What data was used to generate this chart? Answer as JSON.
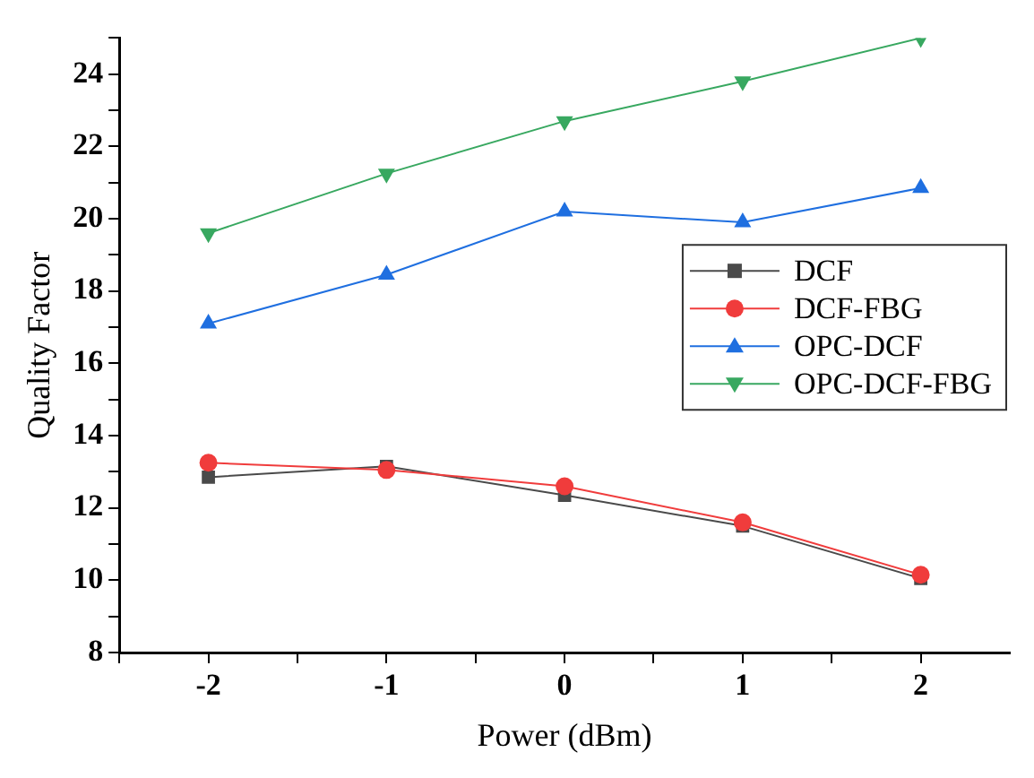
{
  "chart_data": {
    "type": "line",
    "xlabel": "Power (dBm)",
    "ylabel": "Quality Factor",
    "x": [
      -2,
      -1,
      0,
      1,
      2
    ],
    "xlim": [
      -2.5,
      2.5
    ],
    "xticks": [
      {
        "value": -2.5,
        "label": null
      },
      -2,
      {
        "value": -1.5,
        "label": null
      },
      -1,
      {
        "value": -0.5,
        "label": null
      },
      0,
      {
        "value": 0.5,
        "label": null
      },
      1,
      {
        "value": 1.5,
        "label": null
      },
      2
    ],
    "ylim": [
      8,
      25
    ],
    "yticks": [
      8,
      {
        "value": 9,
        "label": null
      },
      10,
      {
        "value": 11,
        "label": null
      },
      12,
      {
        "value": 13,
        "label": null
      },
      14,
      {
        "value": 15,
        "label": null
      },
      16,
      {
        "value": 17,
        "label": null
      },
      18,
      {
        "value": 19,
        "label": null
      },
      20,
      {
        "value": 21,
        "label": null
      },
      22,
      {
        "value": 23,
        "label": null
      },
      24,
      {
        "value": 25,
        "label": null
      }
    ],
    "grid": false,
    "legend": "right",
    "line_style": "solid",
    "series": [
      {
        "name": "DCF",
        "color": "#4a4a4a",
        "marker": "square",
        "values": [
          12.85,
          13.15,
          12.35,
          11.5,
          10.05
        ]
      },
      {
        "name": "DCF-FBG",
        "color": "#f03c3c",
        "marker": "circle",
        "values": [
          13.25,
          13.05,
          12.6,
          11.6,
          10.15
        ]
      },
      {
        "name": "OPC-DCF",
        "color": "#1f6fe0",
        "marker": "triangle",
        "values": [
          17.1,
          18.45,
          20.2,
          19.9,
          20.85
        ]
      },
      {
        "name": "OPC-DCF-FBG",
        "color": "#38a860",
        "marker": "triangle_down",
        "values": [
          19.6,
          21.25,
          22.7,
          23.8,
          25.0
        ]
      }
    ]
  }
}
